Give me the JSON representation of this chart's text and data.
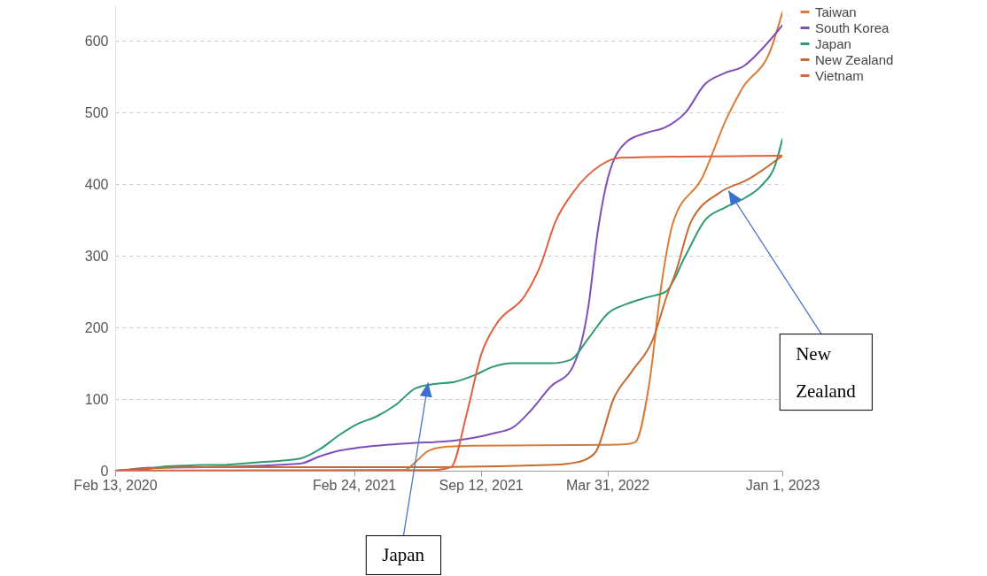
{
  "chart_data": {
    "type": "line",
    "xlim": [
      "2020-02-13",
      "2023-01-01"
    ],
    "xticks": [
      {
        "value": "2020-02-13",
        "label": "Feb 13, 2020"
      },
      {
        "value": "2021-02-24",
        "label": "Feb 24, 2021"
      },
      {
        "value": "2021-09-12",
        "label": "Sep 12, 2021"
      },
      {
        "value": "2022-03-31",
        "label": "Mar 31, 2022"
      },
      {
        "value": "2023-01-01",
        "label": "Jan 1, 2023"
      }
    ],
    "ylim": [
      0,
      650
    ],
    "yticks": [
      0,
      100,
      200,
      300,
      400,
      500,
      600
    ],
    "grid": "y",
    "legend": "right",
    "series": [
      {
        "name": "Taiwan",
        "color": "#dc7b36",
        "x": [
          "2020-02-13",
          "2021-05-15",
          "2021-06-01",
          "2021-06-20",
          "2021-07-15",
          "2021-09-01",
          "2022-04-01",
          "2022-04-30",
          "2022-05-14",
          "2022-06-05",
          "2022-06-25",
          "2022-07-13",
          "2022-08-28",
          "2022-10-05",
          "2022-10-29",
          "2022-12-14",
          "2023-01-01"
        ],
        "values": [
          0,
          1,
          12,
          27,
          33,
          35,
          36,
          37,
          40,
          122,
          265,
          348,
          410,
          492,
          533,
          589,
          640
        ]
      },
      {
        "name": "South Korea",
        "color": "#7d4fb8",
        "x": [
          "2020-02-13",
          "2020-03-01",
          "2020-04-01",
          "2020-07-01",
          "2020-12-01",
          "2021-01-01",
          "2021-02-01",
          "2021-03-01",
          "2021-04-01",
          "2021-05-01",
          "2021-06-01",
          "2021-07-01",
          "2021-08-01",
          "2021-09-01",
          "2021-10-01",
          "2021-11-01",
          "2021-12-01",
          "2022-01-01",
          "2022-02-01",
          "2022-03-01",
          "2022-03-15",
          "2022-04-01",
          "2022-05-01",
          "2022-06-01",
          "2022-07-01",
          "2022-08-01",
          "2022-09-01",
          "2022-10-01",
          "2022-11-01",
          "2022-12-01",
          "2023-01-01"
        ],
        "values": [
          0,
          1,
          4,
          5,
          10,
          20,
          28,
          32,
          35,
          37,
          39,
          40,
          42,
          46,
          52,
          60,
          85,
          118,
          140,
          230,
          330,
          410,
          460,
          472,
          480,
          500,
          540,
          555,
          565,
          590,
          622
        ]
      },
      {
        "name": "Japan",
        "color": "#2f9a72",
        "x": [
          "2020-02-13",
          "2020-03-01",
          "2020-04-01",
          "2020-05-01",
          "2020-06-01",
          "2020-07-01",
          "2020-08-01",
          "2020-09-01",
          "2020-10-01",
          "2020-11-01",
          "2020-12-01",
          "2021-01-01",
          "2021-02-01",
          "2021-03-01",
          "2021-04-01",
          "2021-05-01",
          "2021-06-01",
          "2021-07-01",
          "2021-08-01",
          "2021-09-01",
          "2021-10-01",
          "2021-11-01",
          "2021-12-01",
          "2022-01-01",
          "2022-02-01",
          "2022-03-01",
          "2022-04-01",
          "2022-05-01",
          "2022-06-01",
          "2022-07-01",
          "2022-08-01",
          "2022-09-01",
          "2022-10-01",
          "2022-11-01",
          "2022-12-01",
          "2022-12-20",
          "2023-01-01"
        ],
        "values": [
          0,
          1,
          2,
          6,
          7,
          8,
          8,
          10,
          12,
          14,
          17,
          30,
          50,
          65,
          76,
          92,
          115,
          121,
          124,
          133,
          145,
          150,
          150,
          150,
          155,
          185,
          220,
          233,
          242,
          250,
          300,
          350,
          367,
          380,
          400,
          425,
          463
        ]
      },
      {
        "name": "New Zealand",
        "color": "#c66a30",
        "x": [
          "2020-02-13",
          "2020-04-01",
          "2020-06-01",
          "2021-06-01",
          "2021-12-27",
          "2022-01-29",
          "2022-02-23",
          "2022-03-13",
          "2022-04-10",
          "2022-05-08",
          "2022-06-11",
          "2022-07-03",
          "2022-07-17",
          "2022-08-10",
          "2022-09-25",
          "2022-11-06",
          "2023-01-01"
        ],
        "values": [
          0,
          3,
          5,
          5,
          8,
          10,
          15,
          27,
          101,
          138,
          184,
          245,
          278,
          348,
          389,
          406,
          440
        ]
      },
      {
        "name": "Vietnam",
        "color": "#e0603f",
        "x": [
          "2020-02-13",
          "2021-07-01",
          "2021-07-27",
          "2021-08-21",
          "2021-09-13",
          "2021-10-06",
          "2021-11-21",
          "2021-12-15",
          "2022-01-08",
          "2022-02-05",
          "2022-03-19",
          "2022-04-20",
          "2023-01-01"
        ],
        "values": [
          0,
          1,
          5,
          80,
          163,
          204,
          245,
          286,
          348,
          389,
          426,
          437,
          440
        ]
      }
    ],
    "annotations": [
      {
        "text": "Japan",
        "x": "2021-06-21",
        "y": 123
      },
      {
        "text": "New Zealand",
        "x": "2022-10-08",
        "y": 391
      }
    ]
  }
}
